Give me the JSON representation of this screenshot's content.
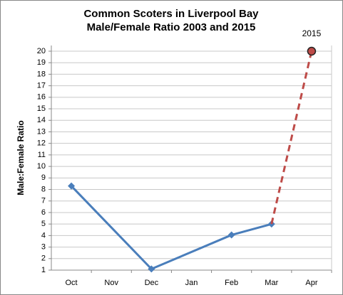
{
  "chart_data": {
    "type": "line",
    "title": [
      "Common Scoters in Liverpool Bay",
      "Male/Female Ratio 2003 and 2015"
    ],
    "y_label": "Male:Female Ratio",
    "categories": [
      "Oct",
      "Nov",
      "Dec",
      "Jan",
      "Feb",
      "Mar",
      "Apr"
    ],
    "ylim": [
      1,
      20
    ],
    "yticks": [
      1,
      2,
      3,
      4,
      5,
      6,
      7,
      8,
      9,
      10,
      11,
      12,
      13,
      14,
      15,
      16,
      17,
      18,
      19,
      20
    ],
    "grid": true,
    "series": [
      {
        "color": "#4a7ebb",
        "dashed": false,
        "marker": "diamond",
        "x": [
          "Oct",
          "Dec",
          "Feb",
          "Mar"
        ],
        "values": [
          8.3,
          1.1,
          4.05,
          5
        ]
      },
      {
        "color": "#be4b48",
        "dashed": true,
        "marker": "circle",
        "x": [
          "Mar",
          "Apr"
        ],
        "values": [
          5,
          20
        ]
      }
    ],
    "annotations": [
      {
        "text": "2015",
        "series": 1,
        "point": 1
      }
    ]
  }
}
